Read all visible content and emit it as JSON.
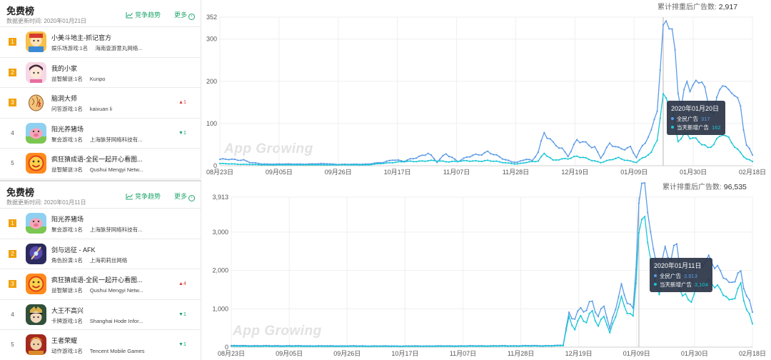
{
  "colors": {
    "accent_green": "#21a66b",
    "rank_badge": "#f0a20f",
    "series_all": "#5b9be6",
    "series_new": "#18c6d6"
  },
  "panels": [
    {
      "title": "免费榜",
      "date_label": "数据更新时间:  2020年01月21日",
      "trend_label": "竞争趋势",
      "more_label": "更多",
      "items": [
        {
          "rank": "1",
          "name": "小美斗地主-抓记官方",
          "category": "娱乐场游戏:1名",
          "publisher": "海南壹游意丸网络...",
          "change": "",
          "icon": "app-icon-poker"
        },
        {
          "rank": "2",
          "name": "我的小家",
          "category": "益智解谜:1名",
          "publisher": "Kunpo",
          "change": "",
          "icon": "app-icon-home"
        },
        {
          "rank": "3",
          "name": "脑洞大师",
          "category": "问答游戏:1名",
          "publisher": "kaixuan li",
          "change": "1",
          "dir": "up",
          "icon": "app-icon-brain"
        },
        {
          "rank": "4",
          "name": "阳光养猪场",
          "category": "聚会游戏:1名",
          "publisher": "上海脉芽网络科技有...",
          "change": "1",
          "dir": "down",
          "icon": "app-icon-pig"
        },
        {
          "rank": "5",
          "name": "疯狂猜成语-全民一起开心看图...",
          "category": "益智解谜:3名",
          "publisher": "Qushui Mengyi Netw...",
          "change": "",
          "icon": "app-icon-idiom"
        }
      ]
    },
    {
      "title": "免费榜",
      "date_label": "数据更新时间:  2020年01月11日",
      "trend_label": "竞争趋势",
      "more_label": "更多",
      "items": [
        {
          "rank": "1",
          "name": "阳光养猪场",
          "category": "聚会游戏:1名",
          "publisher": "上海脉芽网络科技有...",
          "change": "",
          "icon": "app-icon-pig"
        },
        {
          "rank": "2",
          "name": "剑与远征 - AFK",
          "category": "角色扮演:1名",
          "publisher": "上海莉莉丝网络",
          "change": "",
          "icon": "app-icon-sword"
        },
        {
          "rank": "3",
          "name": "疯狂猜成语-全民一起开心看图...",
          "category": "益智解谜:1名",
          "publisher": "Qushui Mengyi Netw...",
          "change": "4",
          "dir": "up",
          "icon": "app-icon-idiom"
        },
        {
          "rank": "4",
          "name": "大王不高兴",
          "category": "卡牌游戏:1名",
          "publisher": "Shanghai Hode Infor...",
          "change": "1",
          "dir": "down",
          "icon": "app-icon-king"
        },
        {
          "rank": "5",
          "name": "王者荣耀",
          "category": "动作游戏:1名",
          "publisher": "Tencent Mobile Games",
          "change": "1",
          "dir": "down",
          "icon": "app-icon-hero"
        }
      ]
    }
  ],
  "charts": [
    {
      "total_label": "累计排重后广告数:",
      "total_value": "2,917",
      "watermark": "App Growing",
      "tooltip": {
        "date": "2020年01月20日",
        "s1_label": "全民广告",
        "s1_value": "317",
        "s2_label": "当天新增广告",
        "s2_value": "162"
      }
    },
    {
      "total_label": "累计排重后广告数:",
      "total_value": "96,535",
      "watermark": "App Growing",
      "tooltip": {
        "date": "2020年01月11日",
        "s1_label": "全民广告",
        "s1_value": "3,913",
        "s2_label": "当天新增广告",
        "s2_value": "3,104"
      }
    }
  ],
  "chart_data": [
    {
      "type": "line",
      "ylim": [
        0,
        352
      ],
      "yticks": [
        "0",
        "100",
        "200",
        "300",
        "352"
      ],
      "ytick_values": [
        0,
        100,
        200,
        300,
        352
      ],
      "xticks": [
        "08月23日",
        "09月05日",
        "09月26日",
        "10月17日",
        "11月07日",
        "11月28日",
        "12月19日",
        "01月09日",
        "01月30日",
        "02月18日"
      ],
      "highlight_index": 149,
      "x_count": 180,
      "series": [
        {
          "name": "全民广告",
          "keypoints": [
            [
              0,
              15
            ],
            [
              8,
              14
            ],
            [
              10,
              8
            ],
            [
              14,
              4
            ],
            [
              30,
              4
            ],
            [
              36,
              5
            ],
            [
              40,
              3
            ],
            [
              50,
              4
            ],
            [
              55,
              8
            ],
            [
              58,
              15
            ],
            [
              62,
              10
            ],
            [
              68,
              25
            ],
            [
              70,
              30
            ],
            [
              73,
              8
            ],
            [
              76,
              30
            ],
            [
              80,
              10
            ],
            [
              85,
              25
            ],
            [
              90,
              32
            ],
            [
              94,
              20
            ],
            [
              98,
              10
            ],
            [
              100,
              8
            ],
            [
              103,
              15
            ],
            [
              105,
              12
            ],
            [
              107,
              35
            ],
            [
              109,
              80
            ],
            [
              112,
              50
            ],
            [
              115,
              40
            ],
            [
              117,
              25
            ],
            [
              120,
              60
            ],
            [
              123,
              50
            ],
            [
              126,
              45
            ],
            [
              128,
              20
            ],
            [
              131,
              50
            ],
            [
              134,
              40
            ],
            [
              138,
              45
            ],
            [
              140,
              20
            ],
            [
              143,
              55
            ],
            [
              145,
              80
            ],
            [
              147,
              150
            ],
            [
              149,
              317
            ],
            [
              150,
              352
            ],
            [
              151,
              330
            ],
            [
              153,
              250
            ],
            [
              154,
              180
            ],
            [
              155,
              140
            ],
            [
              157,
              210
            ],
            [
              160,
              185
            ],
            [
              162,
              200
            ],
            [
              164,
              140
            ],
            [
              166,
              135
            ],
            [
              169,
              210
            ],
            [
              171,
              160
            ],
            [
              173,
              170
            ],
            [
              175,
              135
            ],
            [
              177,
              55
            ],
            [
              179,
              25
            ]
          ]
        },
        {
          "name": "当天新增广告",
          "keypoints": [
            [
              0,
              5
            ],
            [
              14,
              2
            ],
            [
              50,
              2
            ],
            [
              58,
              8
            ],
            [
              70,
              12
            ],
            [
              76,
              10
            ],
            [
              90,
              12
            ],
            [
              100,
              4
            ],
            [
              107,
              12
            ],
            [
              109,
              30
            ],
            [
              112,
              12
            ],
            [
              120,
              22
            ],
            [
              128,
              8
            ],
            [
              134,
              18
            ],
            [
              140,
              8
            ],
            [
              145,
              30
            ],
            [
              147,
              70
            ],
            [
              149,
              162
            ],
            [
              150,
              165
            ],
            [
              152,
              120
            ],
            [
              154,
              60
            ],
            [
              157,
              80
            ],
            [
              160,
              60
            ],
            [
              164,
              40
            ],
            [
              166,
              55
            ],
            [
              169,
              80
            ],
            [
              171,
              60
            ],
            [
              173,
              45
            ],
            [
              175,
              30
            ],
            [
              177,
              18
            ],
            [
              179,
              10
            ]
          ]
        }
      ]
    },
    {
      "type": "line",
      "ylim": [
        0,
        3913
      ],
      "yticks": [
        "0",
        "1,000",
        "2,000",
        "3,000",
        "3,913"
      ],
      "ytick_values": [
        0,
        1000,
        2000,
        3000,
        3913
      ],
      "xticks": [
        "08月23日",
        "09月05日",
        "09月26日",
        "10月17日",
        "11月07日",
        "11月28日",
        "12月19日",
        "01月09日",
        "01月30日",
        "02月18日"
      ],
      "highlight_index": 140,
      "x_count": 180,
      "series": [
        {
          "name": "全民广告",
          "keypoints": [
            [
              0,
              40
            ],
            [
              60,
              30
            ],
            [
              110,
              40
            ],
            [
              114,
              50
            ],
            [
              116,
              900
            ],
            [
              118,
              800
            ],
            [
              120,
              1000
            ],
            [
              122,
              900
            ],
            [
              124,
              1200
            ],
            [
              126,
              800
            ],
            [
              128,
              1200
            ],
            [
              130,
              450
            ],
            [
              132,
              1000
            ],
            [
              134,
              1500
            ],
            [
              136,
              1300
            ],
            [
              138,
              1000
            ],
            [
              139,
              2200
            ],
            [
              140,
              3913
            ],
            [
              141,
              3850
            ],
            [
              142,
              3900
            ],
            [
              143,
              3600
            ],
            [
              145,
              2400
            ],
            [
              147,
              2200
            ],
            [
              149,
              2500
            ],
            [
              151,
              2300
            ],
            [
              153,
              2450
            ],
            [
              155,
              2000
            ],
            [
              157,
              1800
            ],
            [
              159,
              1900
            ],
            [
              161,
              2200
            ],
            [
              163,
              2050
            ],
            [
              165,
              2400
            ],
            [
              167,
              2100
            ],
            [
              169,
              2000
            ],
            [
              171,
              1500
            ],
            [
              173,
              1750
            ],
            [
              175,
              1900
            ],
            [
              177,
              1500
            ],
            [
              179,
              900
            ]
          ]
        },
        {
          "name": "当天新增广告",
          "keypoints": [
            [
              0,
              25
            ],
            [
              60,
              20
            ],
            [
              110,
              30
            ],
            [
              114,
              40
            ],
            [
              116,
              800
            ],
            [
              118,
              500
            ],
            [
              120,
              800
            ],
            [
              122,
              600
            ],
            [
              124,
              950
            ],
            [
              126,
              550
            ],
            [
              128,
              900
            ],
            [
              130,
              350
            ],
            [
              132,
              800
            ],
            [
              134,
              1200
            ],
            [
              136,
              1000
            ],
            [
              138,
              800
            ],
            [
              139,
              1800
            ],
            [
              140,
              3104
            ],
            [
              141,
              3000
            ],
            [
              142,
              3100
            ],
            [
              143,
              2800
            ],
            [
              145,
              1800
            ],
            [
              147,
              1600
            ],
            [
              149,
              1900
            ],
            [
              151,
              1700
            ],
            [
              153,
              1800
            ],
            [
              155,
              1400
            ],
            [
              157,
              1300
            ],
            [
              159,
              1400
            ],
            [
              161,
              1600
            ],
            [
              163,
              1500
            ],
            [
              165,
              1800
            ],
            [
              167,
              1600
            ],
            [
              169,
              1500
            ],
            [
              171,
              1100
            ],
            [
              173,
              1300
            ],
            [
              175,
              1600
            ],
            [
              177,
              1100
            ],
            [
              179,
              600
            ]
          ]
        }
      ]
    }
  ]
}
